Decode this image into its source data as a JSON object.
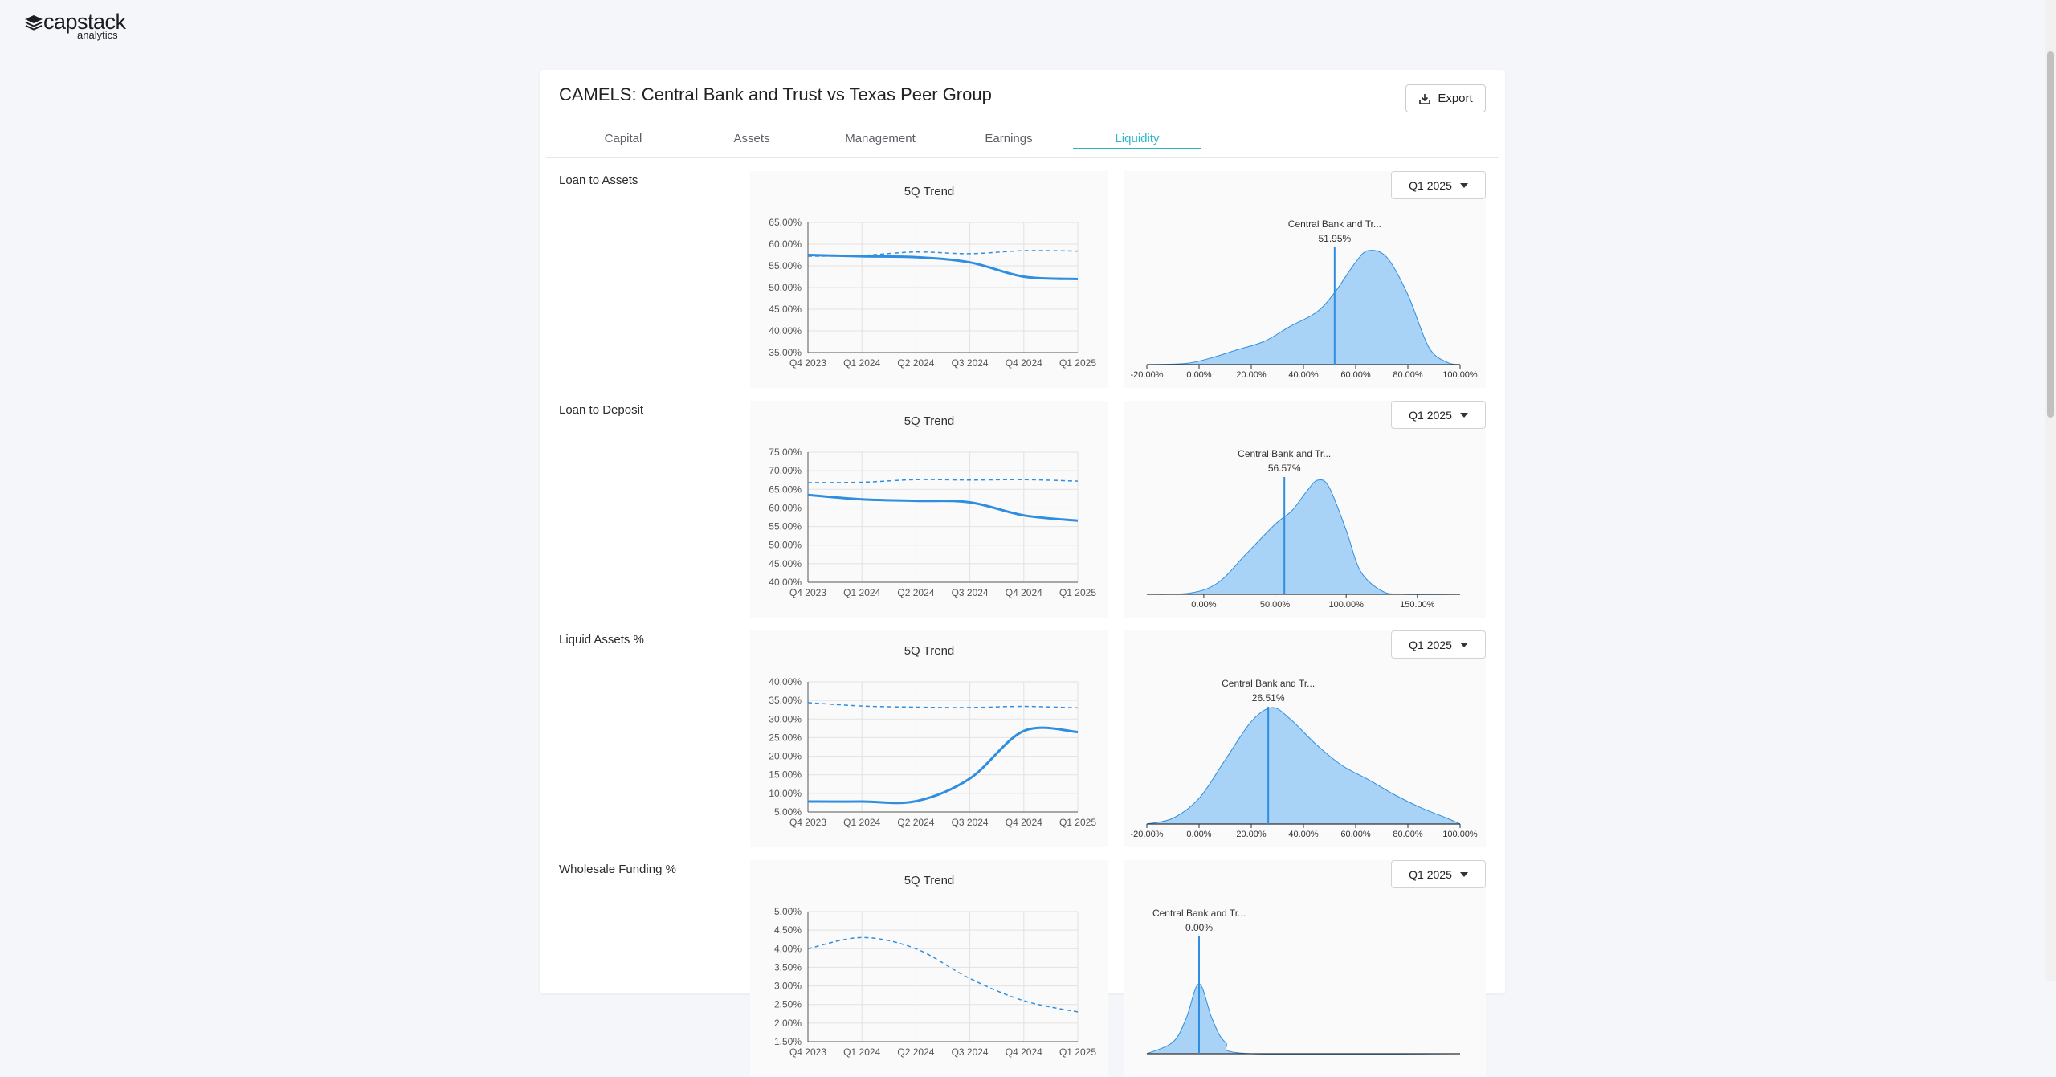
{
  "brand": {
    "name": "capstack",
    "sub": "analytics"
  },
  "page": {
    "title": "CAMELS: Central Bank and Trust vs Texas Peer Group",
    "export_label": "Export"
  },
  "tabs": [
    {
      "label": "Capital",
      "active": false
    },
    {
      "label": "Assets",
      "active": false
    },
    {
      "label": "Management",
      "active": false
    },
    {
      "label": "Earnings",
      "active": false
    },
    {
      "label": "Liquidity",
      "active": true
    }
  ],
  "colors": {
    "accent": "#29b6c9",
    "line": "#2f8ee0",
    "fill": "#a8d2f6",
    "grid": "#e2e2e2"
  },
  "sections": [
    {
      "label": "Loan to Assets",
      "trend": {
        "title": "5Q Trend",
        "x_labels": [
          "Q4 2023",
          "Q1 2024",
          "Q2 2024",
          "Q3 2024",
          "Q4 2024",
          "Q1 2025"
        ],
        "y_ticks": [
          "65.00%",
          "60.00%",
          "55.00%",
          "50.00%",
          "45.00%",
          "40.00%",
          "35.00%"
        ],
        "y_min": 35,
        "y_max": 65,
        "bank_values": [
          57.5,
          57.2,
          57.0,
          55.8,
          52.5,
          51.95
        ],
        "peer_values": [
          57.2,
          57.4,
          58.2,
          57.8,
          58.5,
          58.4
        ]
      },
      "distribution": {
        "period": "Q1 2025",
        "marker_name": "Central Bank and Tr...",
        "marker_value": "51.95%",
        "marker_x": 51.95,
        "x_min": -20,
        "x_max": 100,
        "x_ticks": [
          {
            "v": -20,
            "label": "-20.00%"
          },
          {
            "v": 0,
            "label": "0.00%"
          },
          {
            "v": 20,
            "label": "20.00%"
          },
          {
            "v": 40,
            "label": "40.00%"
          },
          {
            "v": 60,
            "label": "60.00%"
          },
          {
            "v": 80,
            "label": "80.00%"
          },
          {
            "v": 100,
            "label": "100.00%"
          }
        ],
        "curve": [
          [
            -20,
            0
          ],
          [
            -5,
            0.01
          ],
          [
            5,
            0.06
          ],
          [
            15,
            0.13
          ],
          [
            25,
            0.2
          ],
          [
            35,
            0.33
          ],
          [
            45,
            0.45
          ],
          [
            52,
            0.62
          ],
          [
            60,
            0.88
          ],
          [
            65,
            0.98
          ],
          [
            72,
            0.92
          ],
          [
            80,
            0.6
          ],
          [
            88,
            0.15
          ],
          [
            95,
            0.02
          ],
          [
            100,
            0
          ]
        ]
      }
    },
    {
      "label": "Loan to Deposit",
      "trend": {
        "title": "5Q Trend",
        "x_labels": [
          "Q4 2023",
          "Q1 2024",
          "Q2 2024",
          "Q3 2024",
          "Q4 2024",
          "Q1 2025"
        ],
        "y_ticks": [
          "75.00%",
          "70.00%",
          "65.00%",
          "60.00%",
          "55.00%",
          "50.00%",
          "45.00%",
          "40.00%"
        ],
        "y_min": 40,
        "y_max": 75,
        "bank_values": [
          63.5,
          62.3,
          61.9,
          61.5,
          58.0,
          56.57
        ],
        "peer_values": [
          66.8,
          66.9,
          67.6,
          67.5,
          67.6,
          67.2
        ]
      },
      "distribution": {
        "period": "Q1 2025",
        "marker_name": "Central Bank and Tr...",
        "marker_value": "56.57%",
        "marker_x": 56.57,
        "x_min": -40,
        "x_max": 180,
        "x_ticks": [
          {
            "v": 0,
            "label": "0.00%"
          },
          {
            "v": 50,
            "label": "50.00%"
          },
          {
            "v": 100,
            "label": "100.00%"
          },
          {
            "v": 150,
            "label": "150.00%"
          }
        ],
        "curve": [
          [
            -40,
            0
          ],
          [
            -10,
            0.01
          ],
          [
            10,
            0.1
          ],
          [
            30,
            0.35
          ],
          [
            50,
            0.6
          ],
          [
            62,
            0.72
          ],
          [
            72,
            0.88
          ],
          [
            80,
            0.98
          ],
          [
            88,
            0.92
          ],
          [
            100,
            0.55
          ],
          [
            110,
            0.2
          ],
          [
            125,
            0.03
          ],
          [
            140,
            0
          ],
          [
            180,
            0
          ]
        ]
      }
    },
    {
      "label": "Liquid Assets %",
      "trend": {
        "title": "5Q Trend",
        "x_labels": [
          "Q4 2023",
          "Q1 2024",
          "Q2 2024",
          "Q3 2024",
          "Q4 2024",
          "Q1 2025"
        ],
        "y_ticks": [
          "40.00%",
          "35.00%",
          "30.00%",
          "25.00%",
          "20.00%",
          "15.00%",
          "10.00%",
          "5.00%"
        ],
        "y_min": 5,
        "y_max": 40,
        "bank_values": [
          7.8,
          7.8,
          7.9,
          14.0,
          26.8,
          26.51
        ],
        "peer_values": [
          34.4,
          33.5,
          33.2,
          33.1,
          33.4,
          33.0
        ]
      },
      "distribution": {
        "period": "Q1 2025",
        "marker_name": "Central Bank and Tr...",
        "marker_value": "26.51%",
        "marker_x": 26.51,
        "x_min": -20,
        "x_max": 100,
        "x_ticks": [
          {
            "v": -20,
            "label": "-20.00%"
          },
          {
            "v": 0,
            "label": "0.00%"
          },
          {
            "v": 20,
            "label": "20.00%"
          },
          {
            "v": 40,
            "label": "40.00%"
          },
          {
            "v": 60,
            "label": "60.00%"
          },
          {
            "v": 80,
            "label": "80.00%"
          },
          {
            "v": 100,
            "label": "100.00%"
          }
        ],
        "curve": [
          [
            -20,
            0
          ],
          [
            -10,
            0.05
          ],
          [
            0,
            0.22
          ],
          [
            10,
            0.55
          ],
          [
            20,
            0.88
          ],
          [
            28,
            1.0
          ],
          [
            35,
            0.9
          ],
          [
            45,
            0.68
          ],
          [
            55,
            0.5
          ],
          [
            65,
            0.38
          ],
          [
            75,
            0.25
          ],
          [
            85,
            0.14
          ],
          [
            95,
            0.05
          ],
          [
            100,
            0
          ]
        ]
      }
    },
    {
      "label": "Wholesale Funding %",
      "trend": {
        "title": "5Q Trend",
        "x_labels": [
          "Q4 2023",
          "Q1 2024",
          "Q2 2024",
          "Q3 2024",
          "Q4 2024",
          "Q1 2025"
        ],
        "y_ticks": [
          "5.00%",
          "4.50%",
          "4.00%",
          "3.50%",
          "3.00%",
          "2.50%",
          "2.00%",
          "1.50%"
        ],
        "y_min": 1.5,
        "y_max": 5,
        "bank_values": [],
        "peer_values": [
          4.0,
          4.3,
          4.0,
          3.2,
          2.6,
          2.3
        ]
      },
      "distribution": {
        "period": "Q1 2025",
        "marker_name": "Central Bank and Tr...",
        "marker_value": "0.00%",
        "marker_x": 0,
        "x_min": -20,
        "x_max": 100,
        "x_ticks": [],
        "curve": [
          [
            -20,
            0
          ],
          [
            -10,
            0.1
          ],
          [
            -5,
            0.3
          ],
          [
            0,
            0.6
          ],
          [
            5,
            0.3
          ],
          [
            10,
            0.1
          ],
          [
            20,
            0
          ],
          [
            100,
            0
          ]
        ]
      }
    }
  ]
}
